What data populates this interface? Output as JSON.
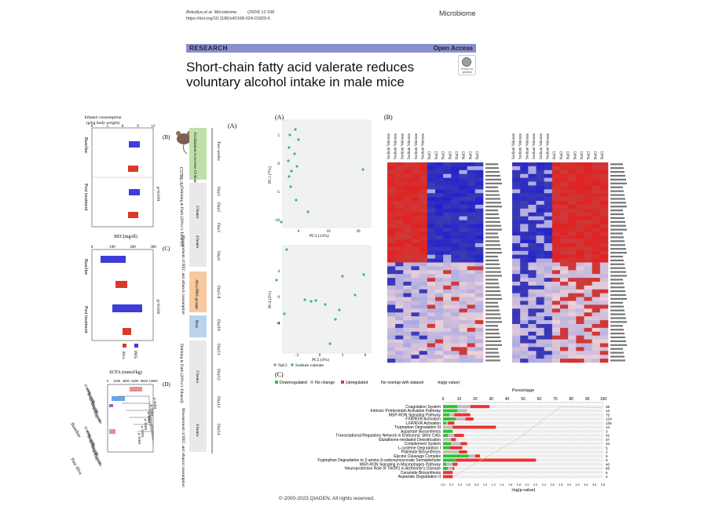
{
  "header": {
    "authors": "Bokoliya et al.",
    "journal": "Microbiome",
    "year_vol": "(2024) 12:108",
    "doi": "https://doi.org/10.1186/s40168-024-01829-6",
    "journal_name": "Microbiome"
  },
  "banner": {
    "left": "RESEARCH",
    "right": "Open Access"
  },
  "title": "Short-chain fatty acid valerate reduces voluntary alcohol intake in male mice",
  "check_updates": "Check for updates",
  "left_panel": {
    "labels": {
      "a": "(A)",
      "b": "(B)",
      "c": "(C)",
      "d": "(D)"
    },
    "mouse_label": "C57BL/6J",
    "timeline": {
      "acclimation": "Acclimation to reverse 12-hour light/dark cycle",
      "two_weeks": "Two weeks",
      "day1": "Day1",
      "day2": "Day2",
      "day3": "Day3",
      "day4": "Day4",
      "day58": "Day5-8",
      "day9": "Day9",
      "day10": "Day10",
      "day11": "Day11",
      "day12": "Day12",
      "day13": "Day13",
      "day14": "Day14",
      "did1": "Drinking in Dark (20%v/v Ethanol)",
      "did2": "Drinking in Dark (20%v/v Ethanol)",
      "hours2a": "2 hours",
      "hours4a": "4 hours",
      "hours2b": "2 hours",
      "hours4b": "4 hours",
      "measure1": "Measurement of BEC and ethanol consumption",
      "measure2": "Measurement of BEC and ethanol consumption",
      "groups": "Alva/PBS groups",
      "rest": "Rest"
    },
    "panel_b": {
      "axis_title": "Ethanol consumption (g/kg body weight)",
      "ticks": [
        "0",
        "3",
        "6",
        "9",
        "12"
      ],
      "rows": [
        "Baseline",
        "Post treatment"
      ],
      "pval": "p=0.019"
    },
    "panel_c": {
      "axis_title": "BEC(mg/dl)",
      "ticks": [
        "0",
        "100",
        "200",
        "300"
      ],
      "rows": [
        "Baseline",
        "Post treatment"
      ],
      "pval": "p=0.036",
      "legend": [
        "PBS",
        "Alva"
      ]
    },
    "panel_d": {
      "axis_title": "SCFA (mmol/kg)",
      "ticks": [
        "0",
        "2000",
        "4000",
        "6000",
        "8000",
        "10000"
      ],
      "groups": [
        "Baseline",
        "Post Alva"
      ],
      "analytes": [
        "Acetate",
        "Propionate",
        "Butyrate",
        "Isobutyrate",
        "Valerate",
        "Isovalerate",
        "Caproate"
      ],
      "pvals": [
        "p<0.001",
        "p<0.001",
        "p<0.001",
        "p<0.001",
        "p<0.001",
        "p<0.001"
      ]
    }
  },
  "panel_a": {
    "label": "(A)",
    "pc1_axis": "PC1 (7%)",
    "pc3_axis": "PC3 (13%)",
    "pc4_axis": "PC4 (5%)",
    "pc5_axis": "PC5 (4%)",
    "top_x_ticks": [
      "0",
      "10",
      "20"
    ],
    "top_y_ticks": [
      "5",
      "0",
      "-5",
      "-10"
    ],
    "bot_x_ticks": [
      "-3",
      "0",
      "3",
      "6"
    ],
    "bot_y_ticks": [
      "4",
      "0",
      "-4"
    ],
    "legend": [
      "NaCl",
      "Sodium valerate"
    ]
  },
  "panel_b": {
    "label": "(B)",
    "columns_left": [
      "Sodium Valerate",
      "Sodium Valerate",
      "Sodium Valerate",
      "Sodium Valerate",
      "Sodium Valerate",
      "Sodium Valerate",
      "NaCl",
      "NaCl",
      "NaCl",
      "NaCl",
      "NaCl",
      "NaCl",
      "NaCl",
      "NaCl"
    ],
    "columns_right": [
      "Sodium Valerate",
      "Sodium Valerate",
      "Sodium Valerate",
      "Sodium Valerate",
      "Sodium Valerate",
      "Sodium Valerate",
      "NaCl",
      "NaCl",
      "NaCl",
      "NaCl",
      "NaCl",
      "NaCl",
      "NaCl",
      "NaCl"
    ]
  },
  "panel_c": {
    "label": "(C)",
    "legend": [
      "Downregulated",
      "No change",
      "Upregulated",
      "No overlap with dataset",
      "-log(p-value)"
    ],
    "percentage_title": "Percentage",
    "pct_ticks": [
      "0",
      "10",
      "20",
      "30",
      "40",
      "50",
      "60",
      "70",
      "80",
      "90",
      "100"
    ],
    "xlabel": "-log(p-value)",
    "pathways": [
      "Coagulation System",
      "Intrinsic Prothrombin Activation Pathway",
      "MSP-RON Signaling Pathway",
      "FXR/RXR Activation",
      "LXR/RXR Activation",
      "Tryptophan Degradation III",
      "Aspartate Biosynthesis",
      "Transcriptional Regulatory Network in Embryonic Stem Cells",
      "Glutathione-mediated Detoxification",
      "Complement System",
      "L-cysteine Degradation I",
      "Palmitate Biosynthesis",
      "Glycine Cleavage Complex",
      "Tryptophan Degradation to 2-amino-3-carboxymuconate Semialdehyde",
      "MSP-RON Signaling in Macrophages Pathway",
      "Neuroprotective Role of THOP1 in Alzheimer's Disease",
      "Ceramide Biosynthesis",
      "Aspartate Degradation II"
    ],
    "counts": [
      "38",
      "12",
      "75",
      "124",
      "126",
      "14",
      "3",
      "42",
      "37",
      "34",
      "5",
      "2",
      "5",
      "5",
      "40",
      "66",
      "6",
      "2"
    ]
  },
  "copyright": "© 2000-2023 QIAGEN. All rights reserved."
}
